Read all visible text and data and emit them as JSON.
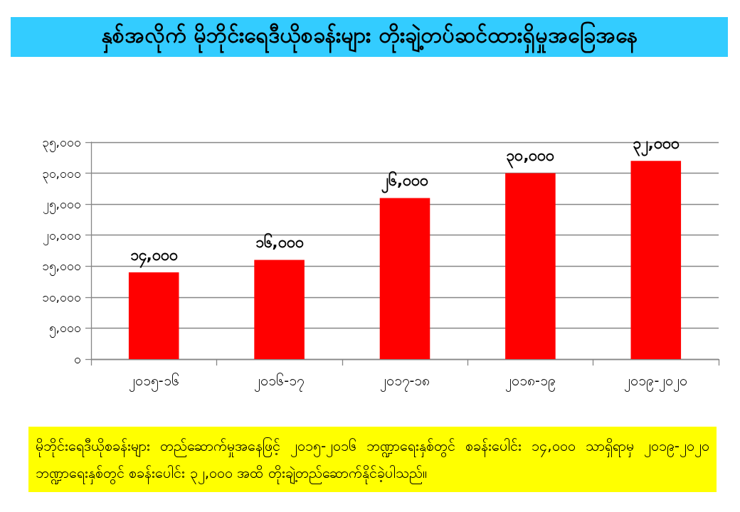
{
  "chart_data": {
    "type": "bar",
    "title": "နှစ်အလိုက် မိုဘိုင်းရေဒီယိုစခန်းများ တိုးချဲ့တပ်ဆင်ထားရှိမှုအခြေအနေ",
    "categories": [
      "၂၀၁၅-၁၆",
      "၂၀၁၆-၁၇",
      "၂၀၁၇-၁၈",
      "၂၀၁၈-၁၉",
      "၂၀၁၉-၂၀၂၀"
    ],
    "values": [
      14000,
      16000,
      26000,
      30000,
      32000
    ],
    "value_labels": [
      "၁၄,၀၀၀",
      "၁၆,၀၀၀",
      "၂၆,၀၀၀",
      "၃၀,၀၀၀",
      "၃၂,၀၀၀"
    ],
    "color": "#ff0000",
    "ylim": [
      0,
      35000
    ],
    "yticks": [
      {
        "value": 0,
        "label": "၀"
      },
      {
        "value": 5000,
        "label": "၅,၀၀၀"
      },
      {
        "value": 10000,
        "label": "၁၀,၀၀၀"
      },
      {
        "value": 15000,
        "label": "၁၅,၀၀၀"
      },
      {
        "value": 20000,
        "label": "၂၀,၀၀၀"
      },
      {
        "value": 25000,
        "label": "၂၅,၀၀၀"
      },
      {
        "value": 30000,
        "label": "၃၀,၀၀၀"
      },
      {
        "value": 35000,
        "label": "၃၅,၀၀၀"
      }
    ],
    "grid": "y",
    "annotations": [
      "မိုဘိုင်းရေဒီယိုစခန်းများ တည်ဆောက်မှုအနေဖြင့် ၂၀၁၅-၂၀၁၆ ဘဏ္ဍာရေးနှစ်တွင် စခန်းပေါင်း ၁၄,၀၀၀ သာရှိရာမှ ၂၀၁၉-၂၀၂၀ ဘဏ္ဍာရေးနှစ်တွင် စခန်းပေါင်း ၃၂,၀၀၀ အထိ တိုးချဲ့တည်ဆောက်နိုင်ခဲ့ပါသည်။"
    ]
  }
}
